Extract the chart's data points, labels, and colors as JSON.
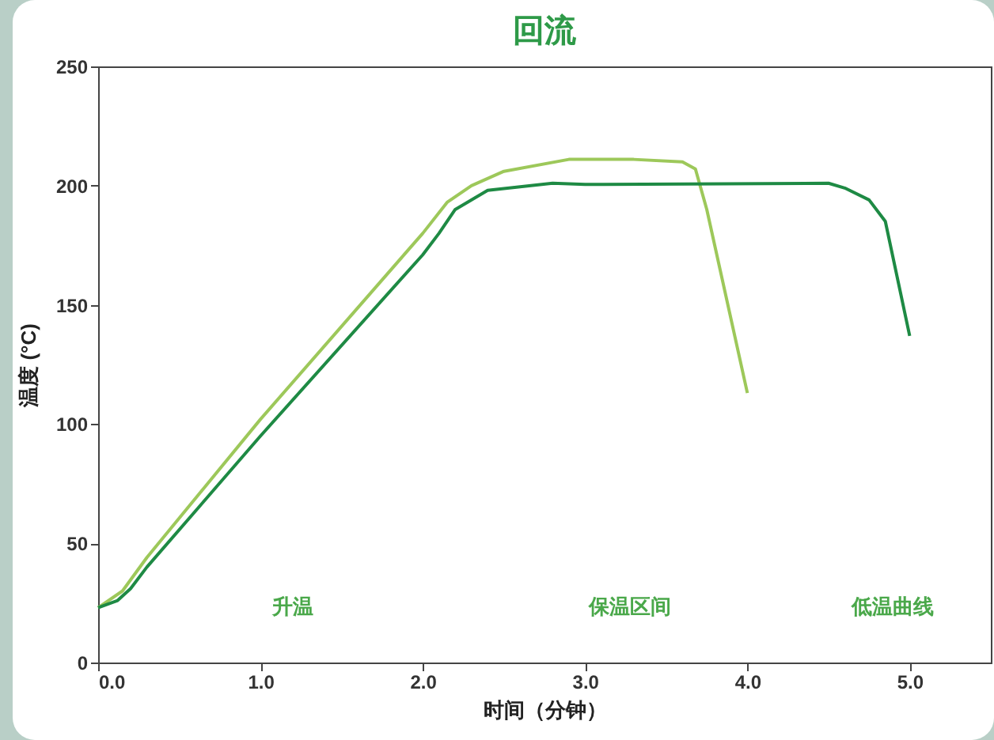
{
  "chart_data": {
    "type": "line",
    "title": "回流",
    "xlabel": "时间（分钟）",
    "ylabel": "温度 (°C)",
    "xlim": [
      0,
      5.5
    ],
    "xticks": [
      {
        "value": 0,
        "label": "0.0"
      },
      {
        "value": 1,
        "label": "1.0"
      },
      {
        "value": 2,
        "label": "2.0"
      },
      {
        "value": 3,
        "label": "3.0"
      },
      {
        "value": 4,
        "label": "4.0"
      },
      {
        "value": 5,
        "label": "5.0"
      }
    ],
    "ylim": [
      0,
      250
    ],
    "yticks": [
      0,
      50,
      100,
      150,
      200,
      250
    ],
    "grid": false,
    "marker": "none",
    "line_style": "solid",
    "series": [
      {
        "color": "#9dc85a",
        "x": [
          0,
          0.15,
          0.3,
          1.0,
          2.0,
          2.15,
          2.3,
          2.5,
          2.9,
          3.3,
          3.6,
          3.68,
          3.75,
          4.0
        ],
        "values": [
          23,
          30,
          44,
          102,
          180,
          193,
          200,
          206,
          211,
          211,
          210,
          207,
          190,
          113
        ]
      },
      {
        "color": "#1e8a44",
        "x": [
          0,
          0.12,
          0.2,
          0.3,
          1.0,
          2.0,
          2.1,
          2.2,
          2.4,
          2.8,
          3.0,
          4.5,
          4.6,
          4.75,
          4.85,
          5.0
        ],
        "values": [
          23,
          26,
          31,
          40,
          95,
          171,
          180,
          190,
          198,
          201,
          200.5,
          201,
          199,
          194,
          185,
          137
        ]
      }
    ],
    "annotations": [
      "升温",
      "保温区间",
      "低温曲线"
    ]
  }
}
